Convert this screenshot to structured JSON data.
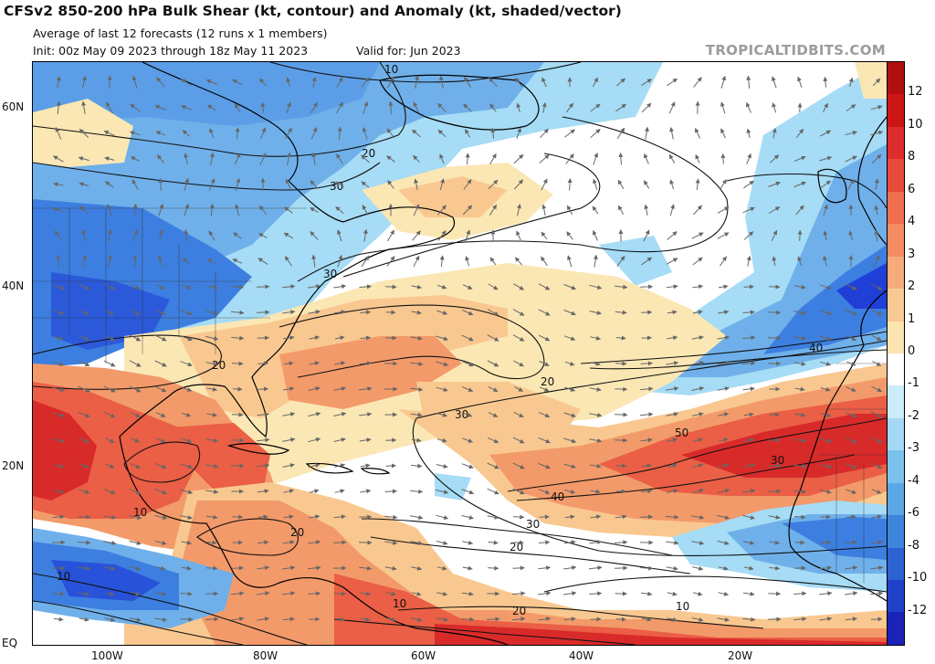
{
  "header": {
    "title": "CFSv2 850-200 hPa Bulk Shear (kt, contour) and Anomaly (kt, shaded/vector)",
    "subtitle": "Average of last 12 forecasts (12 runs x 1 members)",
    "init": "Init: 00z May 09 2023 through 18z May 11 2023",
    "valid": "Valid for: Jun 2023",
    "credit": "TROPICALTIDBITS.COM"
  },
  "map": {
    "lat_labels": [
      "60N",
      "40N",
      "20N",
      "EQ"
    ],
    "lon_labels": [
      "100W",
      "80W",
      "60W",
      "40W",
      "20W"
    ],
    "contour_labels": [
      "10",
      "20",
      "30",
      "30",
      "20",
      "20",
      "30",
      "40",
      "50",
      "30",
      "40",
      "30",
      "20",
      "10",
      "20",
      "10",
      "10",
      "20",
      "10"
    ],
    "colors": {
      "deep_blue": "#1f3fd6",
      "blue": "#3d7fe0",
      "mid_blue": "#6fb0ea",
      "light_blue": "#a6dcf5",
      "pale_blue": "#cdeefa",
      "cream": "#fbe7b4",
      "peach": "#f9c890",
      "orange": "#f39a6a",
      "red_orange": "#ea5f45",
      "red": "#d92a2a",
      "coast": "#000000",
      "contour": "#111111",
      "vector": "#666666"
    }
  },
  "colorbar": {
    "labels": [
      "12",
      "10",
      "8",
      "6",
      "4",
      "3",
      "2",
      "1",
      "0",
      "-1",
      "-2",
      "-3",
      "-4",
      "-6",
      "-8",
      "-10",
      "-12"
    ],
    "colors": [
      "#b01010",
      "#cc1616",
      "#dd2c2c",
      "#e84b3a",
      "#ef6f4f",
      "#f38c62",
      "#f7ab7a",
      "#f9c994",
      "#fbe4b0",
      "#ffffff",
      "#cbecf9",
      "#a3d9f3",
      "#7cc2ee",
      "#5aa7e6",
      "#3d86dc",
      "#2c62d2",
      "#2042c8",
      "#1a22b8"
    ]
  }
}
